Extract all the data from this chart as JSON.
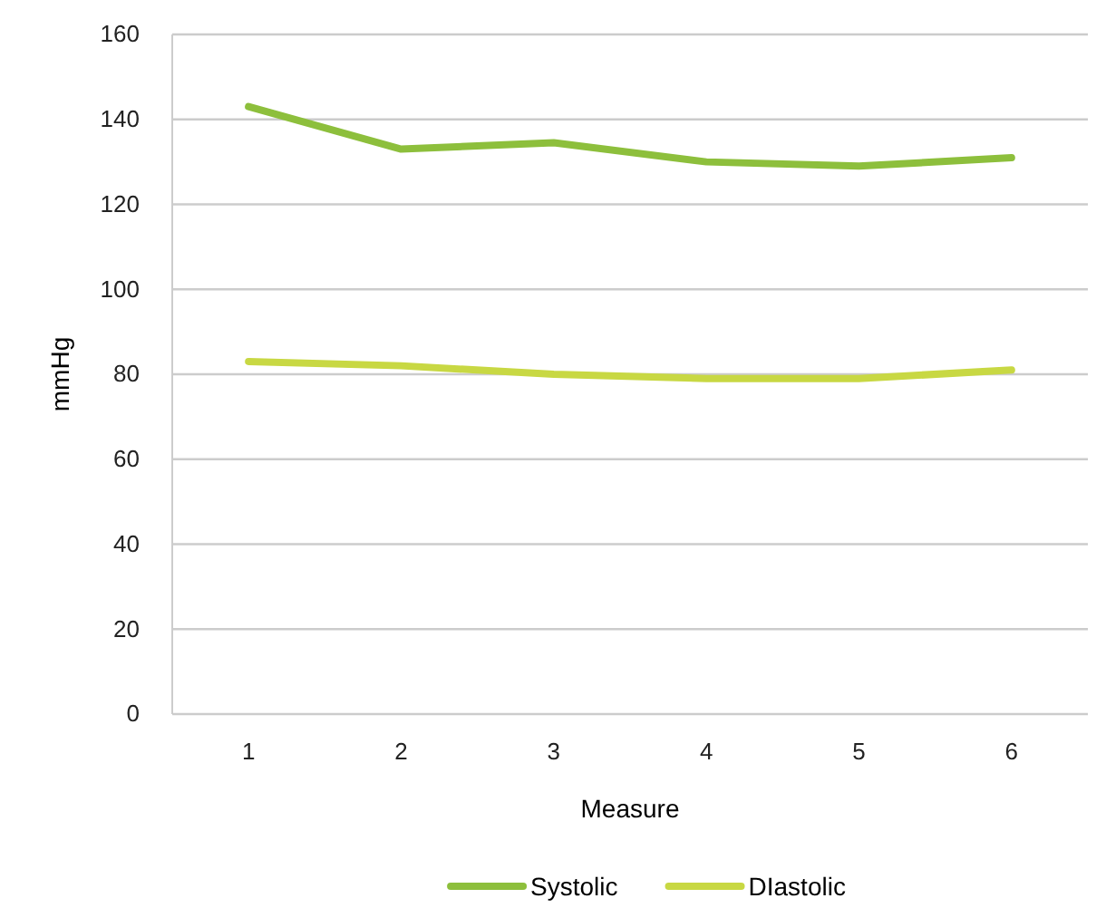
{
  "chart_data": {
    "type": "line",
    "xlabel": "Measure",
    "ylabel": "mmHg",
    "categories": [
      "1",
      "2",
      "3",
      "4",
      "5",
      "6"
    ],
    "series": [
      {
        "name": "Systolic",
        "color": "#8dbf3c",
        "values": [
          143,
          133,
          134.5,
          130,
          129,
          131
        ]
      },
      {
        "name": "DIastolic",
        "color": "#c8d843",
        "values": [
          83,
          82,
          80,
          79,
          79,
          81
        ]
      }
    ],
    "ylim": [
      0,
      160
    ],
    "yticks": [
      0,
      20,
      40,
      60,
      80,
      100,
      120,
      140,
      160
    ],
    "grid": "y",
    "legend": "bottom",
    "marker": "none",
    "line_style": "solid"
  }
}
